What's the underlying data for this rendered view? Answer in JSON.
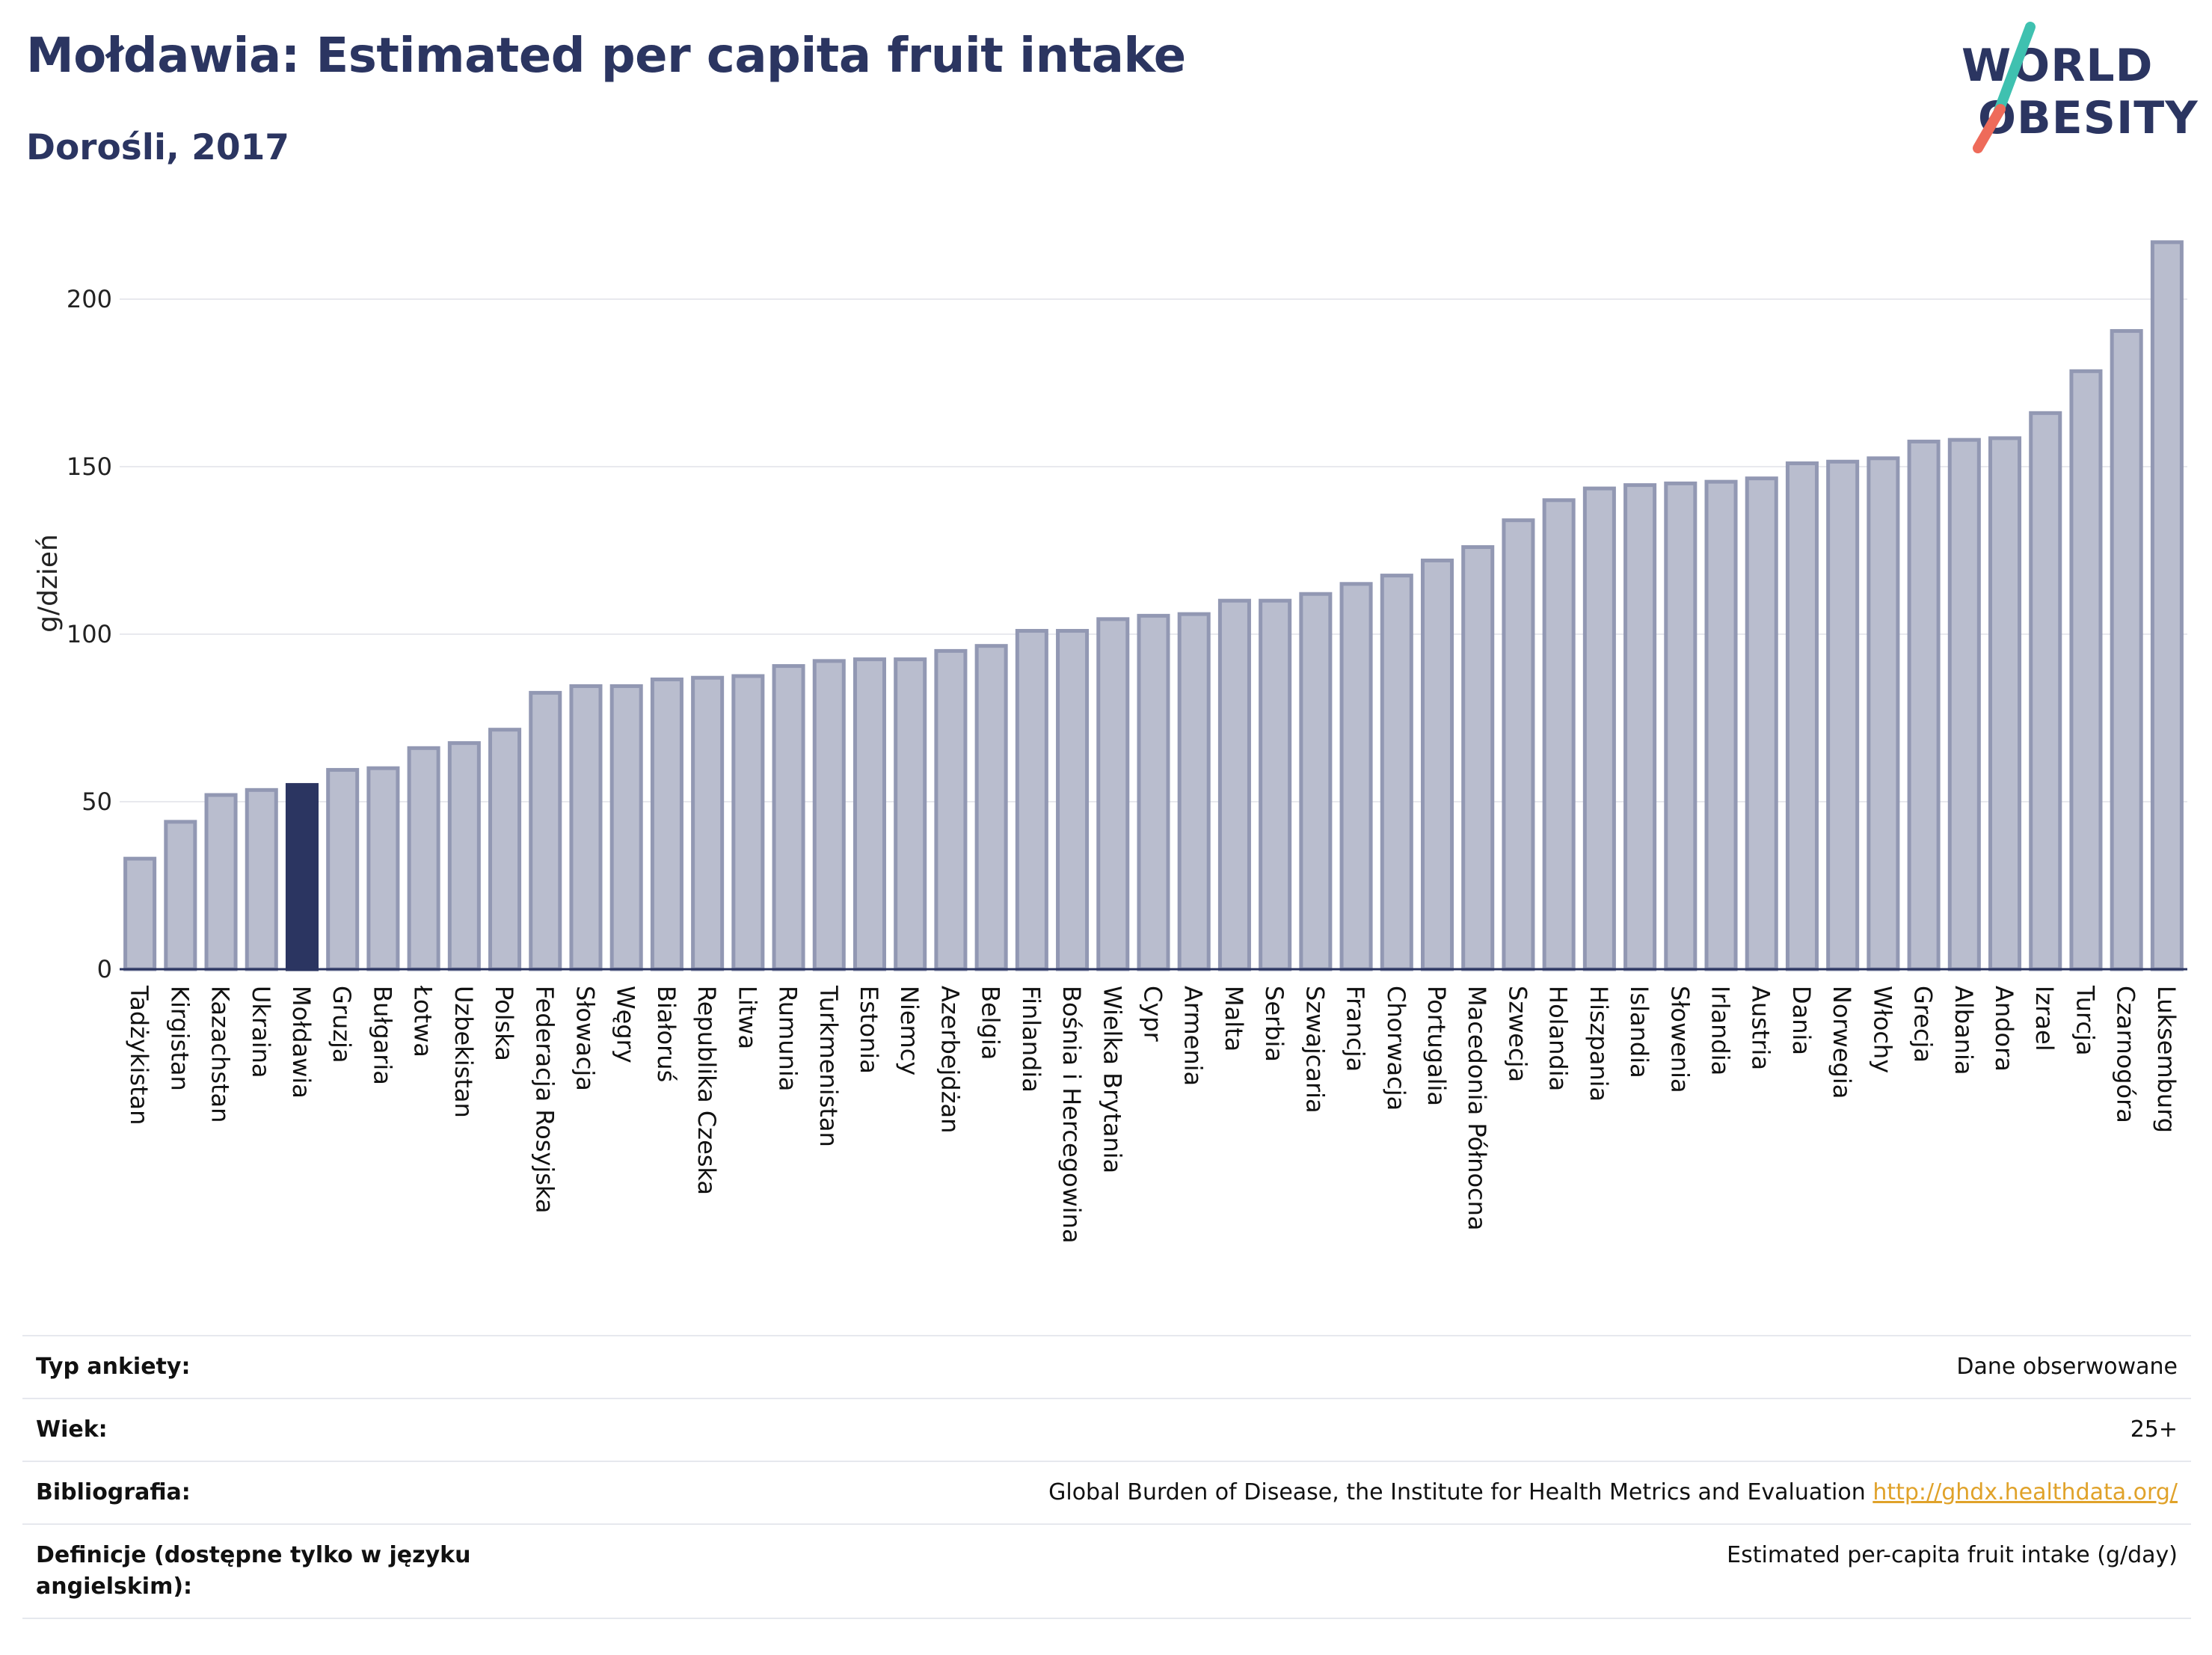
{
  "header": {
    "title": "Mołdawia: Estimated per capita fruit intake",
    "subtitle": "Dorośli, 2017"
  },
  "logo": {
    "line1": "WORLD",
    "line2": "OBESITY",
    "slash_colors": [
      "#3fc1b0",
      "#ee6b5a"
    ]
  },
  "chart_data": {
    "type": "bar",
    "title": "",
    "xlabel": "",
    "ylabel": "g/dzień",
    "ylim": [
      0,
      220
    ],
    "yticks": [
      0,
      50,
      100,
      150,
      200
    ],
    "grid": true,
    "highlight": "Mołdawia",
    "colors": {
      "bar_fill": "#b9bdce",
      "bar_stroke": "#9298b3",
      "highlight_fill": "#2b3561",
      "grid": "#e8e9ee",
      "axis": "#2b3561"
    },
    "categories": [
      "Tadżykistan",
      "Kirgistan",
      "Kazachstan",
      "Ukraina",
      "Mołdawia",
      "Gruzja",
      "Bułgaria",
      "Łotwa",
      "Uzbekistan",
      "Polska",
      "Federacja Rosyjska",
      "Słowacja",
      "Węgry",
      "Białoruś",
      "Republika Czeska",
      "Litwa",
      "Rumunia",
      "Turkmenistan",
      "Estonia",
      "Niemcy",
      "Azerbejdżan",
      "Belgia",
      "Finlandia",
      "Bośnia i Hercegowina",
      "Wielka Brytania",
      "Cypr",
      "Armenia",
      "Malta",
      "Serbia",
      "Szwajcaria",
      "Francja",
      "Chorwacja",
      "Portugalia",
      "Macedonia Północna",
      "Szwecja",
      "Holandia",
      "Hiszpania",
      "Islandia",
      "Słowenia",
      "Irlandia",
      "Austria",
      "Dania",
      "Norwegia",
      "Włochy",
      "Grecja",
      "Albania",
      "Andora",
      "Izrael",
      "Turcja",
      "Czarnogóra",
      "Luksemburg"
    ],
    "values": [
      33,
      44,
      52,
      53.5,
      55,
      59.5,
      60,
      66,
      67.5,
      71.5,
      82.5,
      84.5,
      84.5,
      86.5,
      87,
      87.5,
      90.5,
      92,
      92.5,
      92.5,
      95,
      96.5,
      101,
      101,
      104.5,
      105.5,
      106,
      110,
      110,
      112,
      115,
      117.5,
      122,
      126,
      134,
      140,
      143.5,
      144.5,
      145,
      145.5,
      146.5,
      151,
      151.5,
      152.5,
      157.5,
      158,
      158.5,
      166,
      178.5,
      190.5,
      217
    ]
  },
  "meta": {
    "survey_label": "Typ ankiety:",
    "survey_value": "Dane obserwowane",
    "age_label": "Wiek:",
    "age_value": "25+",
    "bib_label": "Bibliografia:",
    "bib_value": "Global Burden of Disease, the Institute for Health Metrics and Evaluation",
    "bib_link": "http://ghdx.healthdata.org/",
    "def_label_line1": "Definicje (dostępne tylko w języku",
    "def_label_line2": "angielskim):",
    "def_value": "Estimated per-capita fruit intake (g/day)"
  }
}
